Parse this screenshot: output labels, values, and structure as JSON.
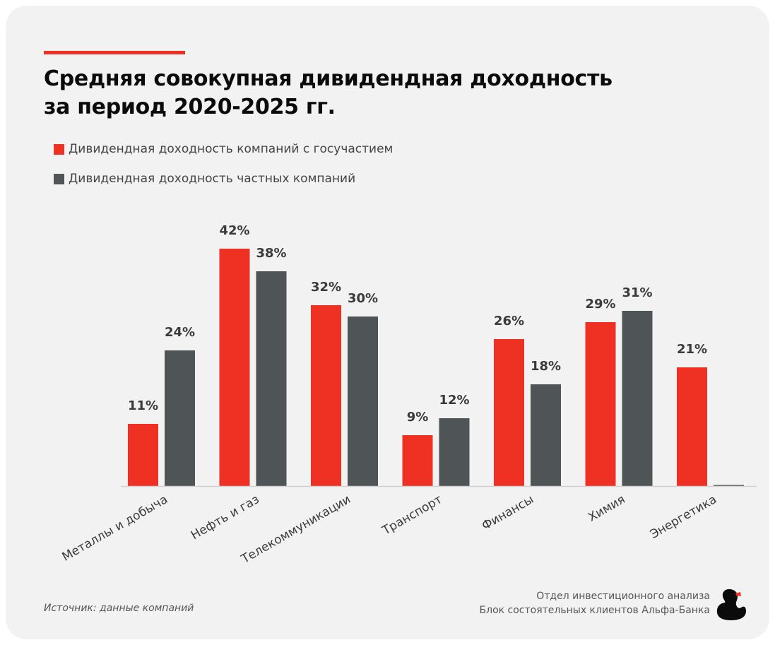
{
  "title_lines": [
    "Средняя совокупная дивидендная доходность",
    "за период 2020-2025 гг."
  ],
  "legend": [
    {
      "label": "Дивидендная доходность компаний с госучастием",
      "color": "#ef3124"
    },
    {
      "label": "Дивидендная доходность частных компаний",
      "color": "#4f5456"
    }
  ],
  "source": "Источник: данные компаний",
  "credit": [
    "Отдел инвестиционного анализа",
    "Блок состоятельных клиентов Альфа-Банка"
  ],
  "logo_icon": "duck-icon",
  "chart_data": {
    "type": "bar",
    "categories": [
      "Металлы и добыча",
      "Нефть и газ",
      "Телекоммуникации",
      "Транспорт",
      "Финансы",
      "Химия",
      "Энергетика"
    ],
    "series": [
      {
        "name": "Дивидендная доходность компаний с госучастием",
        "color": "#ef3124",
        "values": [
          11,
          42,
          32,
          9,
          26,
          29,
          21
        ],
        "labels": [
          "11%",
          "42%",
          "32%",
          "9%",
          "26%",
          "29%",
          "21%"
        ]
      },
      {
        "name": "Дивидендная доходность частных компаний",
        "color": "#4f5456",
        "values": [
          24,
          38,
          30,
          12,
          18,
          31,
          0
        ],
        "labels": [
          "24%",
          "38%",
          "30%",
          "12%",
          "18%",
          "31%",
          ""
        ]
      }
    ],
    "unit": "%",
    "ylim": [
      0,
      42
    ],
    "grid": false,
    "legend_position": "top-left"
  }
}
